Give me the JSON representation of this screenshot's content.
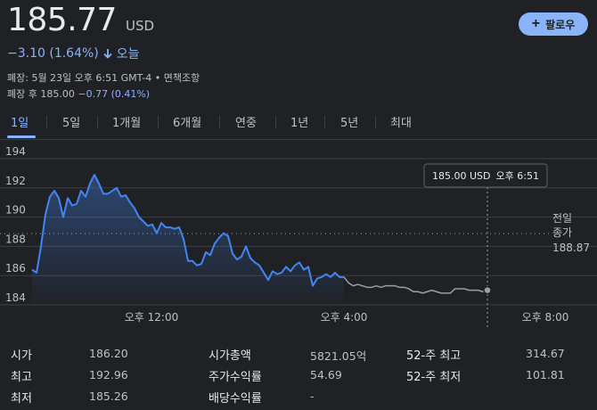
{
  "quote": {
    "price": "185.77",
    "currency": "USD",
    "change": "−3.10 (1.64%)",
    "period": "오늘",
    "close_info": "폐장: 5월 23일 오후 6:51 GMT-4 • 면책조항",
    "after_hours_label": "폐장 후",
    "after_hours_price": "185.00",
    "after_hours_change": "−0.77 (0.41%)"
  },
  "follow_button": {
    "icon": "plus-icon",
    "label": "팔로우"
  },
  "tabs": [
    {
      "label": "1일",
      "active": true
    },
    {
      "label": "5일",
      "active": false
    },
    {
      "label": "1개월",
      "active": false
    },
    {
      "label": "6개월",
      "active": false
    },
    {
      "label": "연중",
      "active": false
    },
    {
      "label": "1년",
      "active": false
    },
    {
      "label": "5년",
      "active": false
    },
    {
      "label": "최대",
      "active": false
    }
  ],
  "chart_data": {
    "type": "line",
    "y_ticks": [
      "194",
      "192",
      "190",
      "188",
      "186",
      "184"
    ],
    "ylim": [
      184,
      194
    ],
    "x_ticks": [
      "오후 12:00",
      "오후 4:00",
      "오후 8:00"
    ],
    "previous_close_label": [
      "전일",
      "종가"
    ],
    "previous_close_value": "188.87",
    "previous_close": 188.87,
    "tooltip_price": "185.00 USD",
    "tooltip_time": "오후 6:51",
    "colors": {
      "session": "#4285f4",
      "after_hours": "#9aa0a6",
      "grid": "#3c4043"
    },
    "session": [
      186.4,
      186.2,
      188.0,
      190.2,
      191.4,
      191.8,
      191.3,
      190.0,
      191.3,
      190.8,
      190.9,
      191.8,
      191.4,
      192.3,
      192.9,
      192.3,
      191.6,
      191.6,
      191.8,
      192.0,
      191.4,
      191.5,
      191.0,
      190.6,
      190.0,
      189.7,
      189.4,
      189.5,
      188.9,
      189.6,
      189.3,
      189.3,
      189.2,
      189.3,
      188.5,
      187.0,
      187.0,
      186.7,
      186.8,
      187.6,
      187.4,
      188.2,
      188.6,
      188.9,
      188.7,
      187.5,
      187.1,
      187.3,
      188.0,
      187.2,
      186.9,
      186.7,
      186.2,
      185.7,
      186.3,
      186.1,
      186.2,
      186.6,
      186.3,
      186.7,
      186.9,
      186.4,
      186.6,
      185.3,
      185.8,
      185.9,
      186.1,
      185.9,
      186.2,
      185.9,
      185.9
    ],
    "after_hours": [
      185.9,
      185.5,
      185.3,
      185.4,
      185.3,
      185.2,
      185.2,
      185.3,
      185.2,
      185.3,
      185.3,
      185.3,
      185.2,
      185.2,
      185.1,
      184.9,
      184.9,
      184.8,
      184.9,
      185.0,
      184.9,
      184.8,
      184.8,
      184.8,
      185.1,
      185.1,
      185.1,
      185.0,
      185.0,
      185.0,
      184.9,
      185.0
    ]
  },
  "stats": [
    {
      "label": "시가",
      "value": "186.20"
    },
    {
      "label": "최고",
      "value": "192.96"
    },
    {
      "label": "최저",
      "value": "185.26"
    },
    {
      "label": "시가총액",
      "value": "5821.05억"
    },
    {
      "label": "주가수익률",
      "value": "54.69"
    },
    {
      "label": "배당수익률",
      "value": "-"
    },
    {
      "label": "52-주 최고",
      "value": "314.67"
    },
    {
      "label": "52-주 최저",
      "value": "101.81"
    }
  ]
}
